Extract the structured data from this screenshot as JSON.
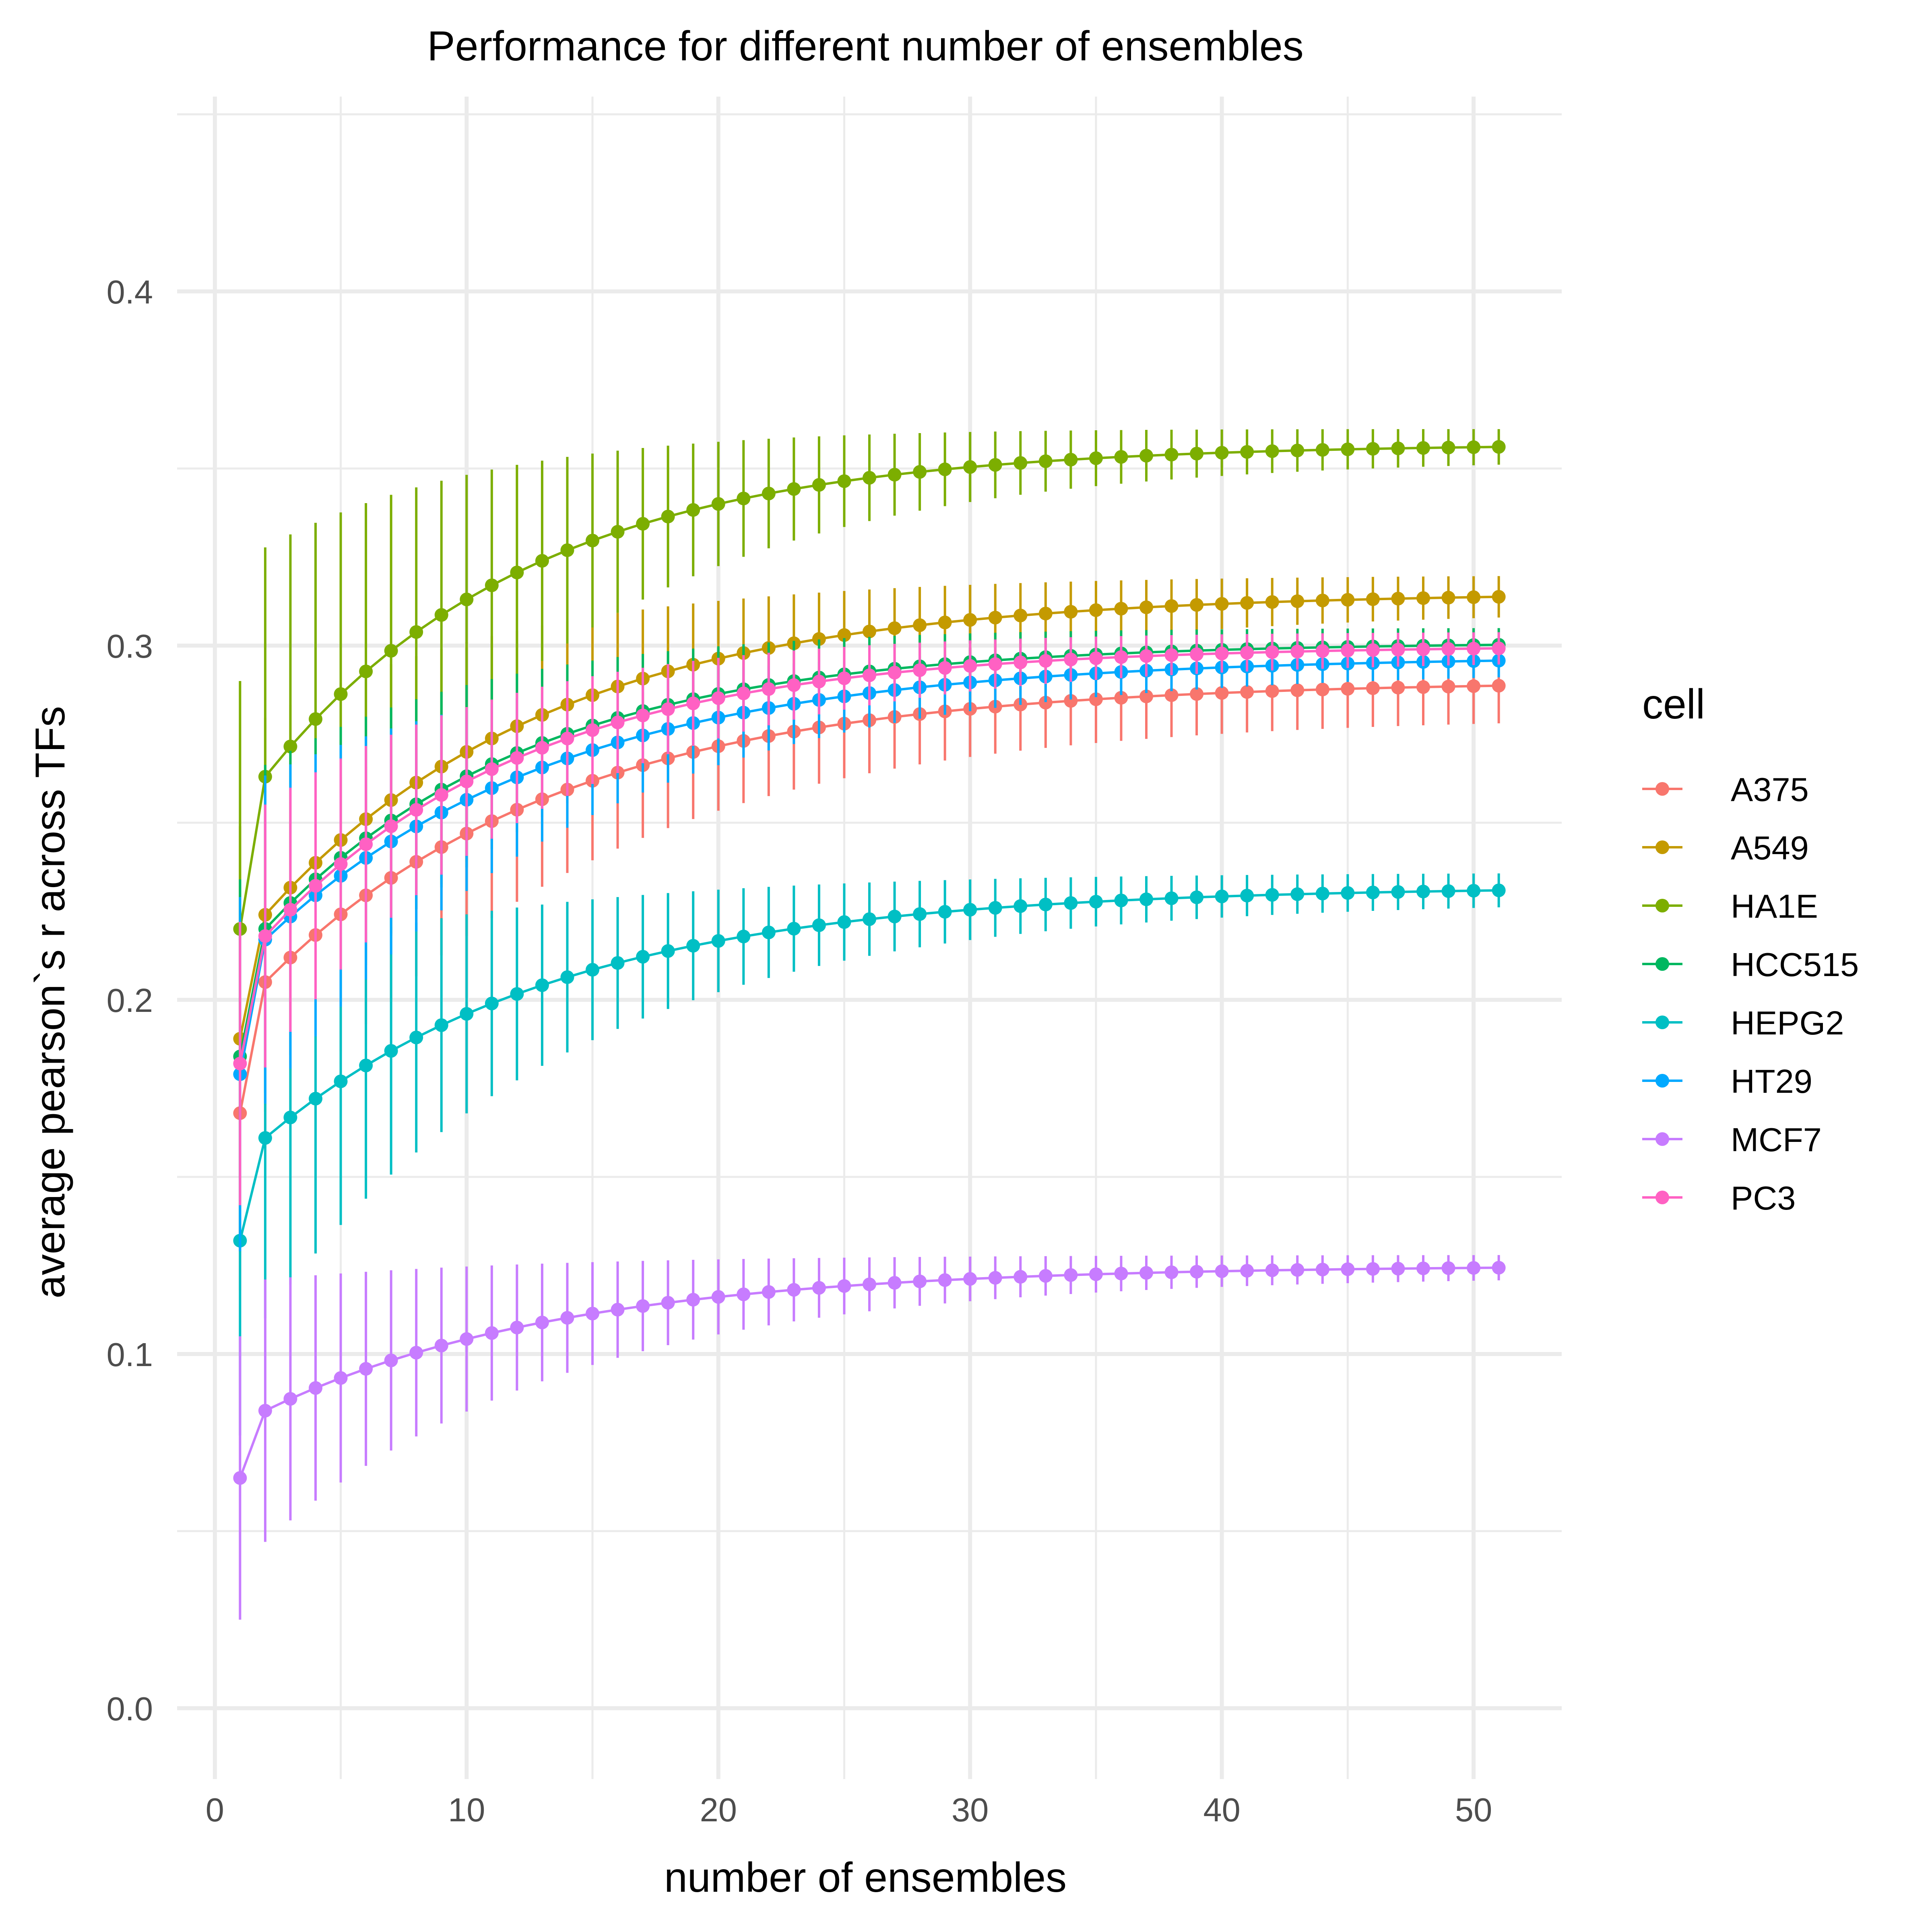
{
  "chart_data": {
    "type": "line",
    "title": "Performance for different number of ensembles",
    "xlabel": "number of ensembles",
    "ylabel": "average pearson`s r across TFs",
    "xlim": [
      -1.5,
      53.5
    ],
    "ylim": [
      -0.02,
      0.455
    ],
    "x_ticks": [
      0,
      10,
      20,
      30,
      40,
      50
    ],
    "x_tick_labels": [
      "0",
      "10",
      "20",
      "30",
      "40",
      "50"
    ],
    "y_ticks": [
      0.0,
      0.1,
      0.2,
      0.3,
      0.4
    ],
    "y_tick_labels": [
      "0.0",
      "0.1",
      "0.2",
      "0.3",
      "0.4"
    ],
    "grid": true,
    "error_bars": true,
    "legend": {
      "title": "cell",
      "position": "right"
    },
    "series": [
      {
        "name": "A375",
        "color": "#F8766D",
        "curve": {
          "start": 0.168,
          "second": 0.205,
          "plateau": 0.29,
          "rate": 0.085
        },
        "err": {
          "start": 0.05,
          "end": 0.01
        }
      },
      {
        "name": "A549",
        "color": "#C49A00",
        "curve": {
          "start": 0.189,
          "second": 0.224,
          "plateau": 0.315,
          "rate": 0.088
        },
        "err": {
          "start": 0.06,
          "end": 0.005
        }
      },
      {
        "name": "HA1E",
        "color": "#7CAE00",
        "curve": {
          "start": 0.22,
          "second": 0.263,
          "plateau": 0.357,
          "rate": 0.095
        },
        "err": {
          "start": 0.07,
          "end": 0.004
        }
      },
      {
        "name": "HCC515",
        "color": "#00B75F",
        "curve": {
          "start": 0.184,
          "second": 0.22,
          "plateau": 0.301,
          "rate": 0.095
        },
        "err": {
          "start": 0.05,
          "end": 0.004
        }
      },
      {
        "name": "HEPG2",
        "color": "#00BFC4",
        "curve": {
          "start": 0.132,
          "second": 0.161,
          "plateau": 0.232,
          "rate": 0.085
        },
        "err": {
          "start": 0.055,
          "end": 0.004
        }
      },
      {
        "name": "HT29",
        "color": "#00A9FF",
        "curve": {
          "start": 0.179,
          "second": 0.217,
          "plateau": 0.297,
          "rate": 0.085
        },
        "err": {
          "start": 0.05,
          "end": 0.004
        }
      },
      {
        "name": "MCF7",
        "color": "#C77CFF",
        "curve": {
          "start": 0.065,
          "second": 0.084,
          "plateau": 0.125,
          "rate": 0.085
        },
        "err": {
          "start": 0.04,
          "end": 0.003
        }
      },
      {
        "name": "PC3",
        "color": "#FF61C3",
        "curve": {
          "start": 0.182,
          "second": 0.218,
          "plateau": 0.3,
          "rate": 0.095
        },
        "err": {
          "start": 0.04,
          "end": 0.004
        }
      }
    ],
    "x_range": [
      1,
      51
    ]
  }
}
